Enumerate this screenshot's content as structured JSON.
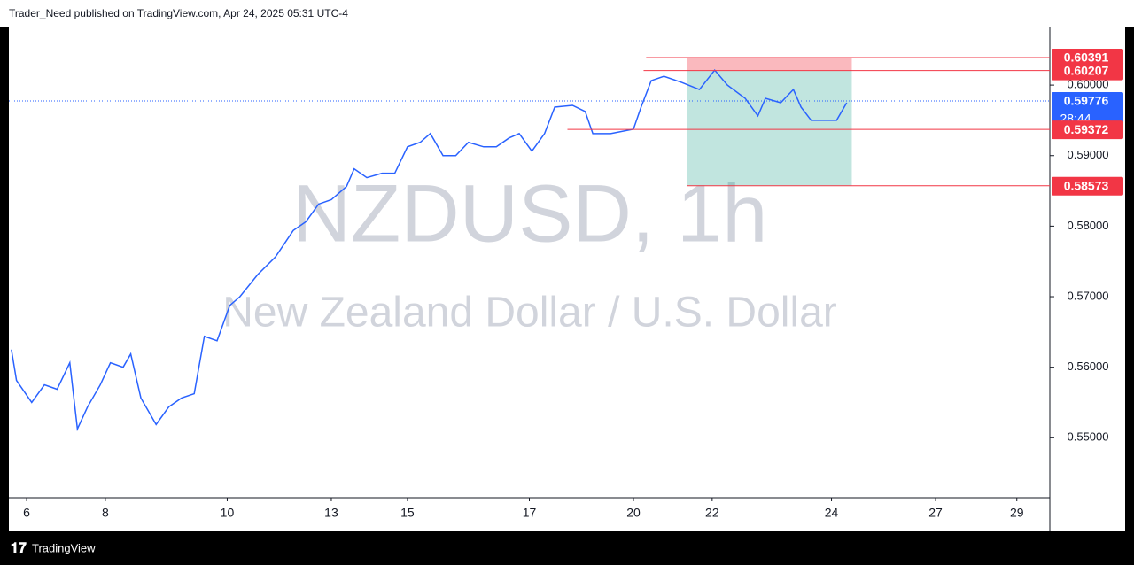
{
  "header": {
    "text": "Trader_Need published on TradingView.com, Apr 24, 2025 05:31 UTC-4"
  },
  "footer": {
    "brand": "TradingView"
  },
  "chart_data": {
    "type": "line",
    "title": "NZDUSD, 1h",
    "subtitle": "New Zealand Dollar / U.S. Dollar",
    "x": [
      1,
      3,
      9,
      14,
      19,
      24,
      27,
      31,
      36,
      40,
      45,
      48,
      52,
      58,
      63,
      68,
      73,
      77,
      82,
      87,
      91,
      98,
      105,
      112,
      117,
      122,
      127,
      133,
      136,
      141,
      147,
      152,
      157,
      162,
      166,
      171,
      176,
      181,
      187,
      192,
      197,
      201,
      206,
      211,
      215,
      222,
      227,
      230,
      237,
      246,
      249,
      253,
      258,
      265,
      272,
      278,
      283,
      290,
      295,
      298,
      304,
      309,
      312,
      316,
      321,
      326,
      330
    ],
    "series": [
      {
        "color": "#2962ff",
        "values": [
          0.5625,
          0.55813,
          0.555,
          0.5575,
          0.55688,
          0.56063,
          0.55125,
          0.55438,
          0.5575,
          0.56063,
          0.56,
          0.56188,
          0.55563,
          0.55188,
          0.55438,
          0.55563,
          0.55625,
          0.56438,
          0.56375,
          0.56875,
          0.57,
          0.57313,
          0.57563,
          0.57938,
          0.58063,
          0.58313,
          0.58375,
          0.58563,
          0.58813,
          0.58688,
          0.5875,
          0.5875,
          0.59125,
          0.59188,
          0.59313,
          0.59,
          0.59,
          0.59188,
          0.59125,
          0.59125,
          0.5925,
          0.59313,
          0.59063,
          0.59313,
          0.59688,
          0.59713,
          0.59625,
          0.59313,
          0.59313,
          0.59375,
          0.59688,
          0.60063,
          0.60125,
          0.60038,
          0.59938,
          0.60213,
          0.6,
          0.59813,
          0.59563,
          0.59813,
          0.5975,
          0.59938,
          0.59688,
          0.595,
          0.595,
          0.595,
          0.5975
        ]
      }
    ],
    "xlim": [
      0,
      410
    ],
    "xticks": [
      {
        "value": 7,
        "label": "6"
      },
      {
        "value": 38,
        "label": "8"
      },
      {
        "value": 86,
        "label": "10"
      },
      {
        "value": 127,
        "label": "13"
      },
      {
        "value": 157,
        "label": "15"
      },
      {
        "value": 205,
        "label": "17"
      },
      {
        "value": 246,
        "label": "20"
      },
      {
        "value": 277,
        "label": "22"
      },
      {
        "value": 324,
        "label": "24"
      },
      {
        "value": 365,
        "label": "27"
      },
      {
        "value": 397,
        "label": "29"
      }
    ],
    "ylim": [
      0.5415,
      0.6083
    ],
    "yticks": [
      {
        "value": 0.55,
        "label": "0.55000"
      },
      {
        "value": 0.56,
        "label": "0.56000"
      },
      {
        "value": 0.57,
        "label": "0.57000"
      },
      {
        "value": 0.58,
        "label": "0.58000"
      },
      {
        "value": 0.59,
        "label": "0.59000"
      },
      {
        "value": 0.6,
        "label": "0.60000"
      }
    ],
    "position": {
      "x": [
        267,
        332
      ],
      "stop": 0.60391,
      "entry": 0.60207,
      "target": 0.58573
    },
    "levels": [
      {
        "value": 0.60391,
        "x": 251,
        "color": "#f23645"
      },
      {
        "value": 0.60207,
        "x": 250,
        "color": "#f23645"
      },
      {
        "value": 0.59776,
        "x": 0,
        "color": "#2962ff",
        "countdown": "28:44"
      },
      {
        "value": 0.59372,
        "x": 220,
        "color": "#f23645"
      },
      {
        "value": 0.58573,
        "x": 267,
        "color": "#f23645"
      }
    ]
  }
}
